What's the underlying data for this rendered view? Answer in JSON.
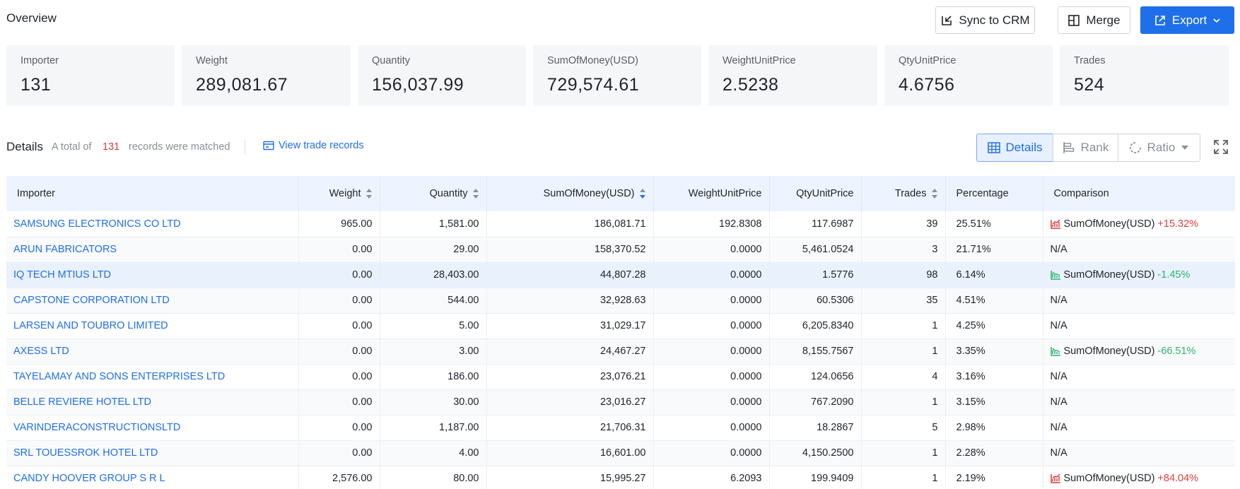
{
  "header": {
    "title": "Overview",
    "sync_label": "Sync to CRM",
    "merge_label": "Merge",
    "export_label": "Export"
  },
  "summary": [
    {
      "label": "Importer",
      "value": "131"
    },
    {
      "label": "Weight",
      "value": "289,081.67"
    },
    {
      "label": "Quantity",
      "value": "156,037.99"
    },
    {
      "label": "SumOfMoney(USD)",
      "value": "729,574.61"
    },
    {
      "label": "WeightUnitPrice",
      "value": "2.5238"
    },
    {
      "label": "QtyUnitPrice",
      "value": "4.6756"
    },
    {
      "label": "Trades",
      "value": "524"
    }
  ],
  "details": {
    "title": "Details",
    "prefix": "A total of",
    "count": "131",
    "suffix": "records were matched",
    "view_link": "View trade records",
    "views": [
      "Details",
      "Rank",
      "Ratio"
    ]
  },
  "table": {
    "columns": [
      "Importer",
      "Weight",
      "Quantity",
      "SumOfMoney(USD)",
      "WeightUnitPrice",
      "QtyUnitPrice",
      "Trades",
      "Percentage",
      "Comparison"
    ],
    "rows": [
      {
        "importer": "SAMSUNG ELECTRONICS CO LTD",
        "weight": "965.00",
        "quantity": "1,581.00",
        "money": "186,081.71",
        "wup": "192.8308",
        "qup": "117.6987",
        "trades": "39",
        "pct": "25.51%",
        "cmp_label": "SumOfMoney(USD)",
        "cmp_delta": "+15.32%",
        "trend": "up"
      },
      {
        "importer": "ARUN FABRICATORS",
        "weight": "0.00",
        "quantity": "29.00",
        "money": "158,370.52",
        "wup": "0.0000",
        "qup": "5,461.0524",
        "trades": "3",
        "pct": "21.71%",
        "cmp_label": "N/A",
        "cmp_delta": "",
        "trend": "none"
      },
      {
        "importer": "IQ TECH MTIUS LTD",
        "weight": "0.00",
        "quantity": "28,403.00",
        "money": "44,807.28",
        "wup": "0.0000",
        "qup": "1.5776",
        "trades": "98",
        "pct": "6.14%",
        "cmp_label": "SumOfMoney(USD)",
        "cmp_delta": "-1.45%",
        "trend": "down"
      },
      {
        "importer": "CAPSTONE CORPORATION LTD",
        "weight": "0.00",
        "quantity": "544.00",
        "money": "32,928.63",
        "wup": "0.0000",
        "qup": "60.5306",
        "trades": "35",
        "pct": "4.51%",
        "cmp_label": "N/A",
        "cmp_delta": "",
        "trend": "none"
      },
      {
        "importer": "LARSEN AND TOUBRO LIMITED",
        "weight": "0.00",
        "quantity": "5.00",
        "money": "31,029.17",
        "wup": "0.0000",
        "qup": "6,205.8340",
        "trades": "1",
        "pct": "4.25%",
        "cmp_label": "N/A",
        "cmp_delta": "",
        "trend": "none"
      },
      {
        "importer": "AXESS LTD",
        "weight": "0.00",
        "quantity": "3.00",
        "money": "24,467.27",
        "wup": "0.0000",
        "qup": "8,155.7567",
        "trades": "1",
        "pct": "3.35%",
        "cmp_label": "SumOfMoney(USD)",
        "cmp_delta": "-66.51%",
        "trend": "down"
      },
      {
        "importer": "TAYELAMAY AND SONS ENTERPRISES LTD",
        "weight": "0.00",
        "quantity": "186.00",
        "money": "23,076.21",
        "wup": "0.0000",
        "qup": "124.0656",
        "trades": "4",
        "pct": "3.16%",
        "cmp_label": "N/A",
        "cmp_delta": "",
        "trend": "none"
      },
      {
        "importer": "BELLE REVIERE HOTEL LTD",
        "weight": "0.00",
        "quantity": "30.00",
        "money": "23,016.27",
        "wup": "0.0000",
        "qup": "767.2090",
        "trades": "1",
        "pct": "3.15%",
        "cmp_label": "N/A",
        "cmp_delta": "",
        "trend": "none"
      },
      {
        "importer": "VARINDERACONSTRUCTIONSLTD",
        "weight": "0.00",
        "quantity": "1,187.00",
        "money": "21,706.31",
        "wup": "0.0000",
        "qup": "18.2867",
        "trades": "5",
        "pct": "2.98%",
        "cmp_label": "N/A",
        "cmp_delta": "",
        "trend": "none"
      },
      {
        "importer": "SRL TOUESSROK HOTEL LTD",
        "weight": "0.00",
        "quantity": "4.00",
        "money": "16,601.00",
        "wup": "0.0000",
        "qup": "4,150.2500",
        "trades": "1",
        "pct": "2.28%",
        "cmp_label": "N/A",
        "cmp_delta": "",
        "trend": "none"
      },
      {
        "importer": "CANDY HOOVER GROUP S R L",
        "weight": "2,576.00",
        "quantity": "80.00",
        "money": "15,995.27",
        "wup": "6.2093",
        "qup": "199.9409",
        "trades": "1",
        "pct": "2.19%",
        "cmp_label": "SumOfMoney(USD)",
        "cmp_delta": "+84.04%",
        "trend": "up"
      }
    ]
  },
  "colors": {
    "accent": "#1f6fea",
    "up": "#e23c3c",
    "down": "#2bb56a"
  }
}
